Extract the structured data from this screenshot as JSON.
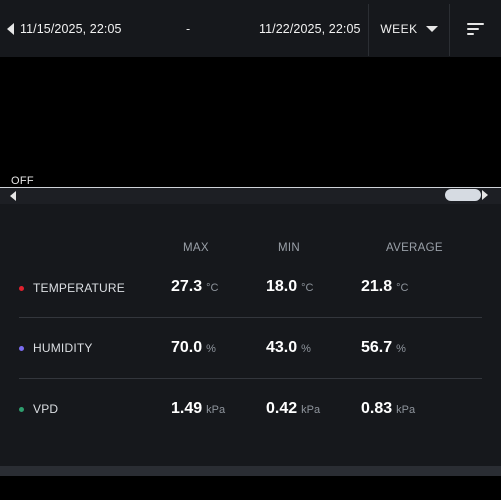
{
  "header": {
    "start_date": "11/15/2025, 22:05",
    "separator": "-",
    "end_date": "11/22/2025, 22:05",
    "range_select": "WEEK",
    "icons": {
      "prev": "caret-left-icon",
      "dropdown": "caret-down-icon",
      "sort": "sort-icon"
    }
  },
  "chart": {
    "toggle_label": "OFF"
  },
  "stats": {
    "columns": [
      "MAX",
      "MIN",
      "AVERAGE"
    ],
    "rows": [
      {
        "label": "TEMPERATURE",
        "color": "#e0212e",
        "max": {
          "value": "27.3",
          "unit": "°C"
        },
        "min": {
          "value": "18.0",
          "unit": "°C"
        },
        "avg": {
          "value": "21.8",
          "unit": "°C"
        }
      },
      {
        "label": "HUMIDITY",
        "color": "#7b6cf0",
        "max": {
          "value": "70.0",
          "unit": "%"
        },
        "min": {
          "value": "43.0",
          "unit": "%"
        },
        "avg": {
          "value": "56.7",
          "unit": "%"
        }
      },
      {
        "label": "VPD",
        "color": "#2e9e6e",
        "max": {
          "value": "1.49",
          "unit": "kPa"
        },
        "min": {
          "value": "0.42",
          "unit": "kPa"
        },
        "avg": {
          "value": "0.83",
          "unit": "kPa"
        }
      }
    ]
  }
}
